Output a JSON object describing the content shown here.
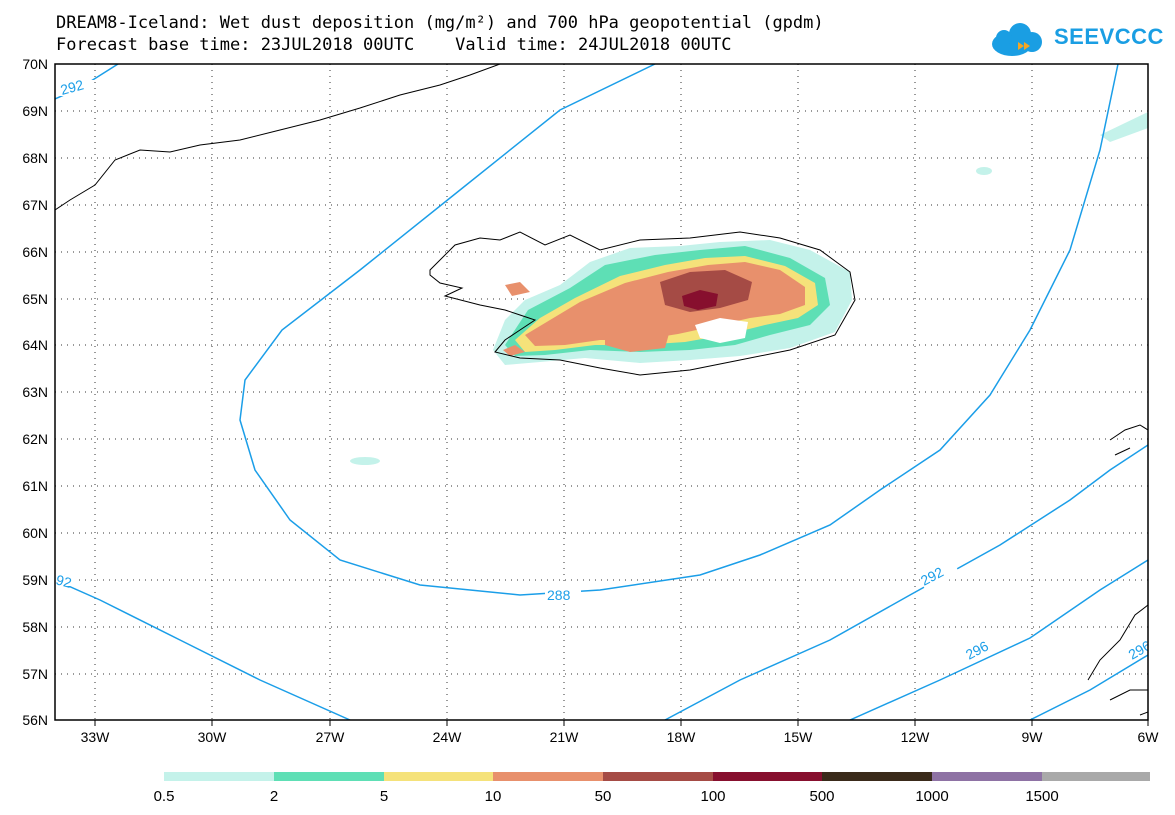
{
  "header": {
    "title_line1": "DREAM8-Iceland: Wet dust deposition (mg/m²) and 700 hPa geopotential (gpdm)",
    "title_line2": "Forecast base time: 23JUL2018 00UTC    Valid time: 24JUL2018 00UTC",
    "logo_text": "SEEVCCC"
  },
  "map": {
    "lat_labels": [
      "70N",
      "69N",
      "68N",
      "67N",
      "66N",
      "65N",
      "64N",
      "63N",
      "62N",
      "61N",
      "60N",
      "59N",
      "58N",
      "57N",
      "56N"
    ],
    "lon_labels": [
      "33W",
      "30W",
      "27W",
      "24W",
      "21W",
      "18W",
      "15W",
      "12W",
      "9W",
      "6W"
    ],
    "contour_labels": [
      "292",
      "288",
      "292",
      "296",
      "92",
      "296"
    ],
    "contour_color": "#1b9ee8"
  },
  "legend": {
    "labels": [
      "0.5",
      "2",
      "5",
      "10",
      "50",
      "100",
      "500",
      "1000",
      "1500"
    ],
    "colors": [
      "#c4f2ea",
      "#5edfb5",
      "#f5e27a",
      "#e8906c",
      "#a54b45",
      "#870f2e",
      "#3a2a1a",
      "#8e72a4",
      "#a9a9a9"
    ]
  }
}
